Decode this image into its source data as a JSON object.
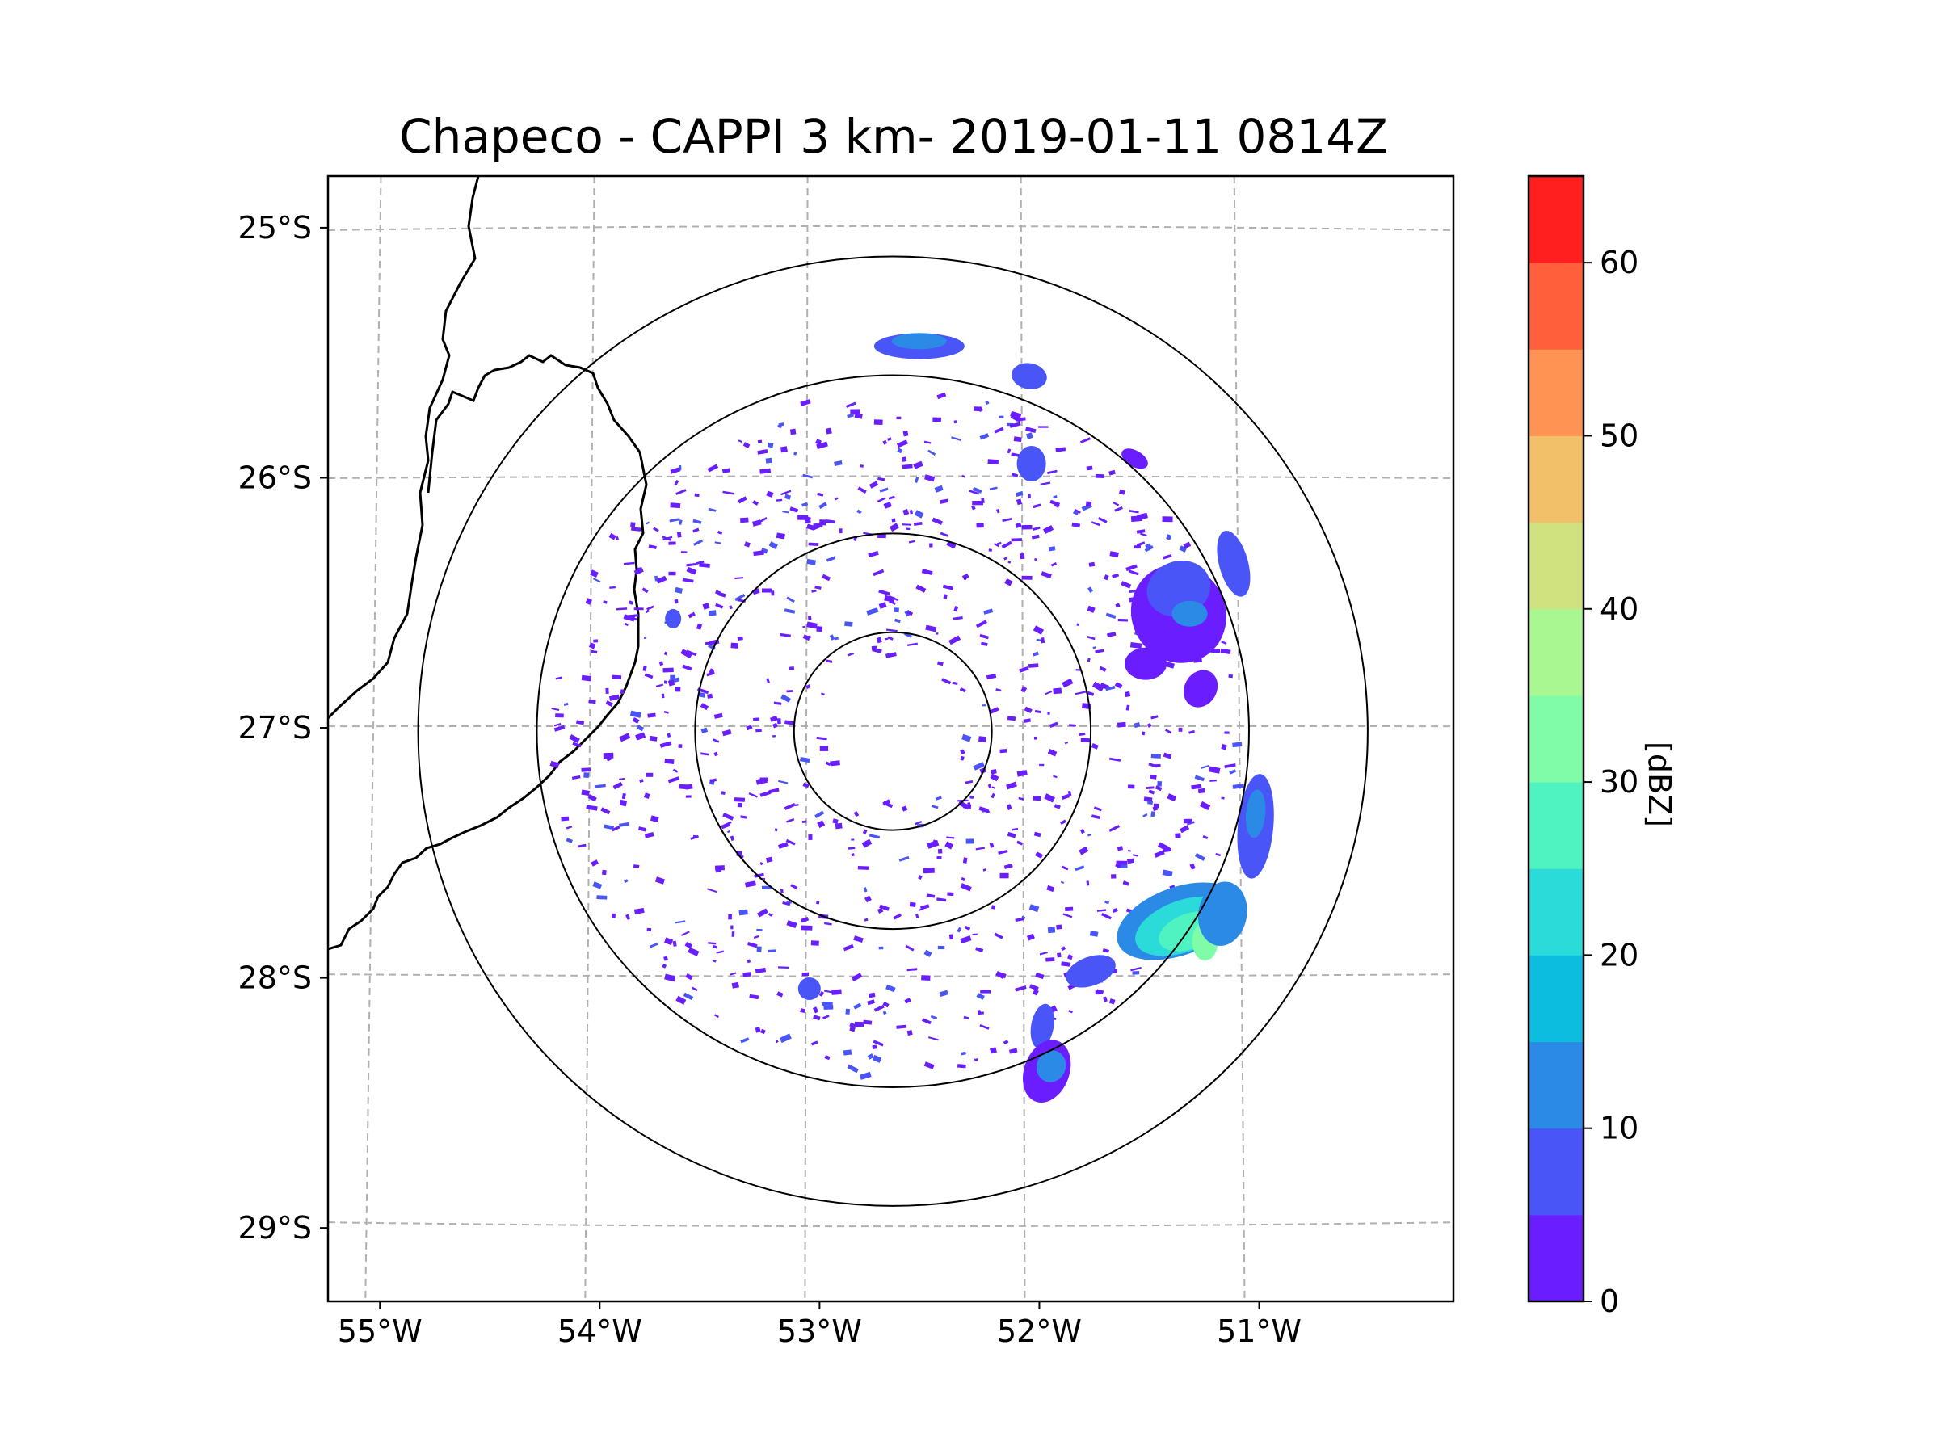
{
  "chart_data": {
    "type": "heatmap",
    "title": "Chapeco - CAPPI 3 km- 2019-01-11 0814Z",
    "lon_ticks": [
      -55,
      -54,
      -53,
      -52,
      -51
    ],
    "lon_tick_labels": [
      "55°W",
      "54°W",
      "53°W",
      "52°W",
      "51°W"
    ],
    "lat_ticks": [
      -25,
      -26,
      -27,
      -28,
      -29
    ],
    "lat_tick_labels": [
      "25°S",
      "26°S",
      "27°S",
      "28°S",
      "29°S"
    ],
    "xlim": [
      -55.17,
      -50.05
    ],
    "ylim": [
      -29.3,
      -24.8
    ],
    "radar_center": {
      "lon": -52.6,
      "lat": -27.02
    },
    "range_rings_deg": [
      0.45,
      0.9,
      1.62,
      2.16
    ],
    "grid": true,
    "colorbar": {
      "label": "[dBZ]",
      "min": 0,
      "max": 65,
      "ticks": [
        0,
        10,
        20,
        30,
        40,
        50,
        60
      ],
      "tick_labels": [
        "0",
        "10",
        "20",
        "30",
        "40",
        "50",
        "60"
      ],
      "levels": [
        0,
        5,
        10,
        15,
        20,
        25,
        30,
        35,
        40,
        45,
        50,
        55,
        60,
        65
      ],
      "colors": [
        "#6a1eff",
        "#4a55f7",
        "#2b8ae6",
        "#0cbde0",
        "#2adbd9",
        "#4ff2c1",
        "#80fca9",
        "#a8f790",
        "#d0e27f",
        "#f3c06a",
        "#ff9353",
        "#ff5f3a",
        "#ff1f1f"
      ]
    },
    "echoes": [
      {
        "name": "northeast cell",
        "lon": -51.3,
        "lat": -26.55,
        "max_dbz": 10
      },
      {
        "name": "east cell",
        "lon": -51.1,
        "lat": -27.5,
        "max_dbz": 12
      },
      {
        "name": "southeast cell",
        "lon": -51.2,
        "lat": -27.85,
        "max_dbz": 32
      },
      {
        "name": "south cell",
        "lon": -51.92,
        "lat": -28.35,
        "max_dbz": 10
      },
      {
        "name": "northern cell",
        "lon": -52.48,
        "lat": -25.48,
        "max_dbz": 10
      },
      {
        "name": "northeast small cell",
        "lon": -52.0,
        "lat": -25.6,
        "max_dbz": 10
      },
      {
        "name": "southwest small cell",
        "lon": -52.98,
        "lat": -28.05,
        "max_dbz": 8
      }
    ]
  }
}
